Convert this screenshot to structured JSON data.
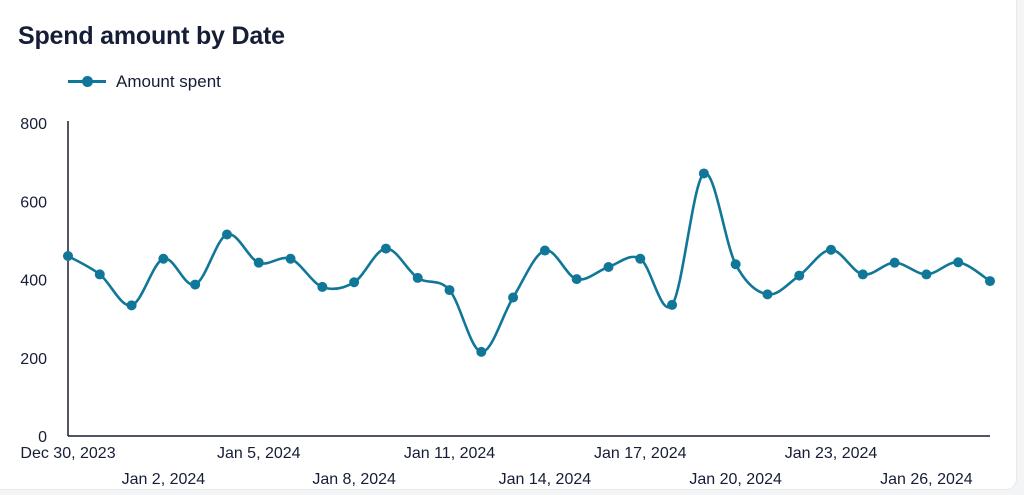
{
  "colors": {
    "series": "#117799",
    "text": "#161d36",
    "axis": "#161d36",
    "background": "#ffffff"
  },
  "chart_data": {
    "type": "line",
    "title": "Spend amount by Date",
    "xlabel": "",
    "ylabel": "",
    "ylim": [
      0,
      800
    ],
    "yticks": [
      0,
      200,
      400,
      600,
      800
    ],
    "grid": false,
    "legend": "top-left",
    "x": [
      "Dec 30, 2023",
      "Dec 31, 2023",
      "Jan 1, 2024",
      "Jan 2, 2024",
      "Jan 3, 2024",
      "Jan 4, 2024",
      "Jan 5, 2024",
      "Jan 6, 2024",
      "Jan 7, 2024",
      "Jan 8, 2024",
      "Jan 9, 2024",
      "Jan 10, 2024",
      "Jan 11, 2024",
      "Jan 12, 2024",
      "Jan 13, 2024",
      "Jan 14, 2024",
      "Jan 15, 2024",
      "Jan 16, 2024",
      "Jan 17, 2024",
      "Jan 18, 2024",
      "Jan 19, 2024",
      "Jan 20, 2024",
      "Jan 21, 2024",
      "Jan 22, 2024",
      "Jan 23, 2024",
      "Jan 24, 2024",
      "Jan 25, 2024",
      "Jan 26, 2024",
      "Jan 27, 2024",
      "Jan 28, 2024"
    ],
    "xtick_labels": [
      "Dec 30, 2023",
      "Jan 2, 2024",
      "Jan 5, 2024",
      "Jan 8, 2024",
      "Jan 11, 2024",
      "Jan 14, 2024",
      "Jan 17, 2024",
      "Jan 20, 2024",
      "Jan 23, 2024",
      "Jan 26, 2024"
    ],
    "series": [
      {
        "name": "Amount spent",
        "values": [
          460,
          413,
          334,
          453,
          387,
          515,
          443,
          453,
          381,
          393,
          479,
          404,
          373,
          215,
          354,
          474,
          401,
          432,
          453,
          335,
          671,
          439,
          362,
          410,
          476,
          413,
          443,
          413,
          444,
          396
        ]
      }
    ]
  }
}
